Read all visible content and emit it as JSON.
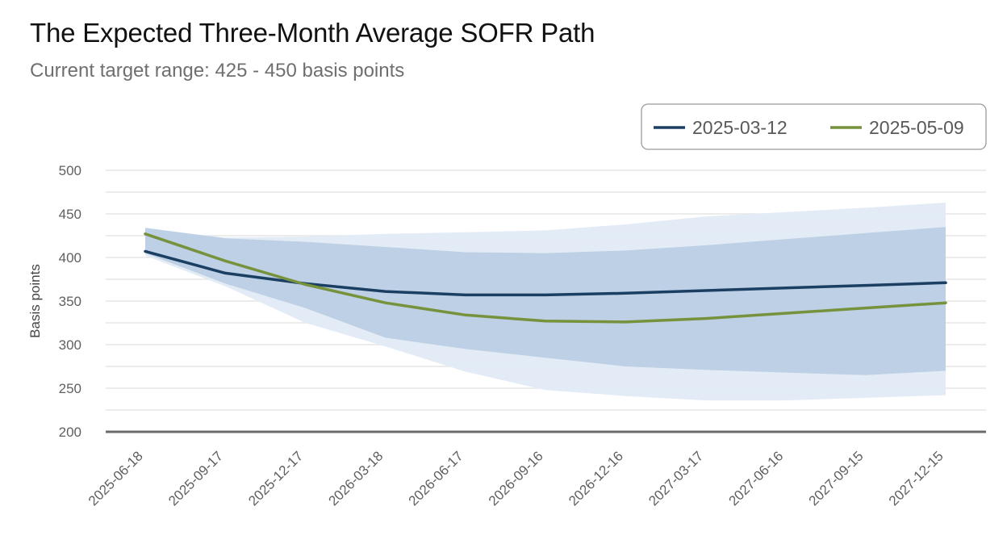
{
  "chart_data": {
    "type": "line",
    "title": "The Expected Three-Month Average SOFR Path",
    "subtitle": "Current target range: 425 - 450 basis points",
    "xlabel": "",
    "ylabel": "Basis points",
    "ylim": [
      200,
      500
    ],
    "yticks": [
      "500",
      "450",
      "400",
      "350",
      "300",
      "250",
      "200"
    ],
    "grid": true,
    "legend_position": "top-right",
    "categories": [
      "2025-06-18",
      "2025-09-17",
      "2025-12-17",
      "2026-03-18",
      "2026-06-17",
      "2026-09-16",
      "2026-12-16",
      "2027-03-17",
      "2027-06-16",
      "2027-09-15",
      "2027-12-15"
    ],
    "series": [
      {
        "name": "2025-03-12",
        "color": "#1b3f63",
        "values": [
          407,
          382,
          370,
          361,
          357,
          357,
          359,
          362,
          365,
          368,
          371
        ],
        "band_upper": [
          432,
          423,
          424,
          427,
          429,
          431,
          438,
          447,
          452,
          457,
          463
        ],
        "band_lower": [
          402,
          367,
          325,
          298,
          269,
          248,
          241,
          236,
          236,
          239,
          242
        ]
      },
      {
        "name": "2025-05-09",
        "color": "#76923c",
        "values": [
          427,
          396,
          369,
          348,
          334,
          327,
          326,
          330,
          336,
          342,
          348
        ],
        "band_upper": [
          434,
          422,
          418,
          412,
          406,
          405,
          408,
          414,
          421,
          428,
          435
        ],
        "band_lower": [
          405,
          370,
          342,
          308,
          295,
          285,
          275,
          271,
          268,
          265,
          270
        ]
      }
    ],
    "colors": {
      "band_wide": "#e2ebf5",
      "band_narrow": "#b9cde3",
      "grid": "#e1e1e1",
      "baseline": "#6b6b6b",
      "axis_text": "#5f5f5f"
    }
  }
}
